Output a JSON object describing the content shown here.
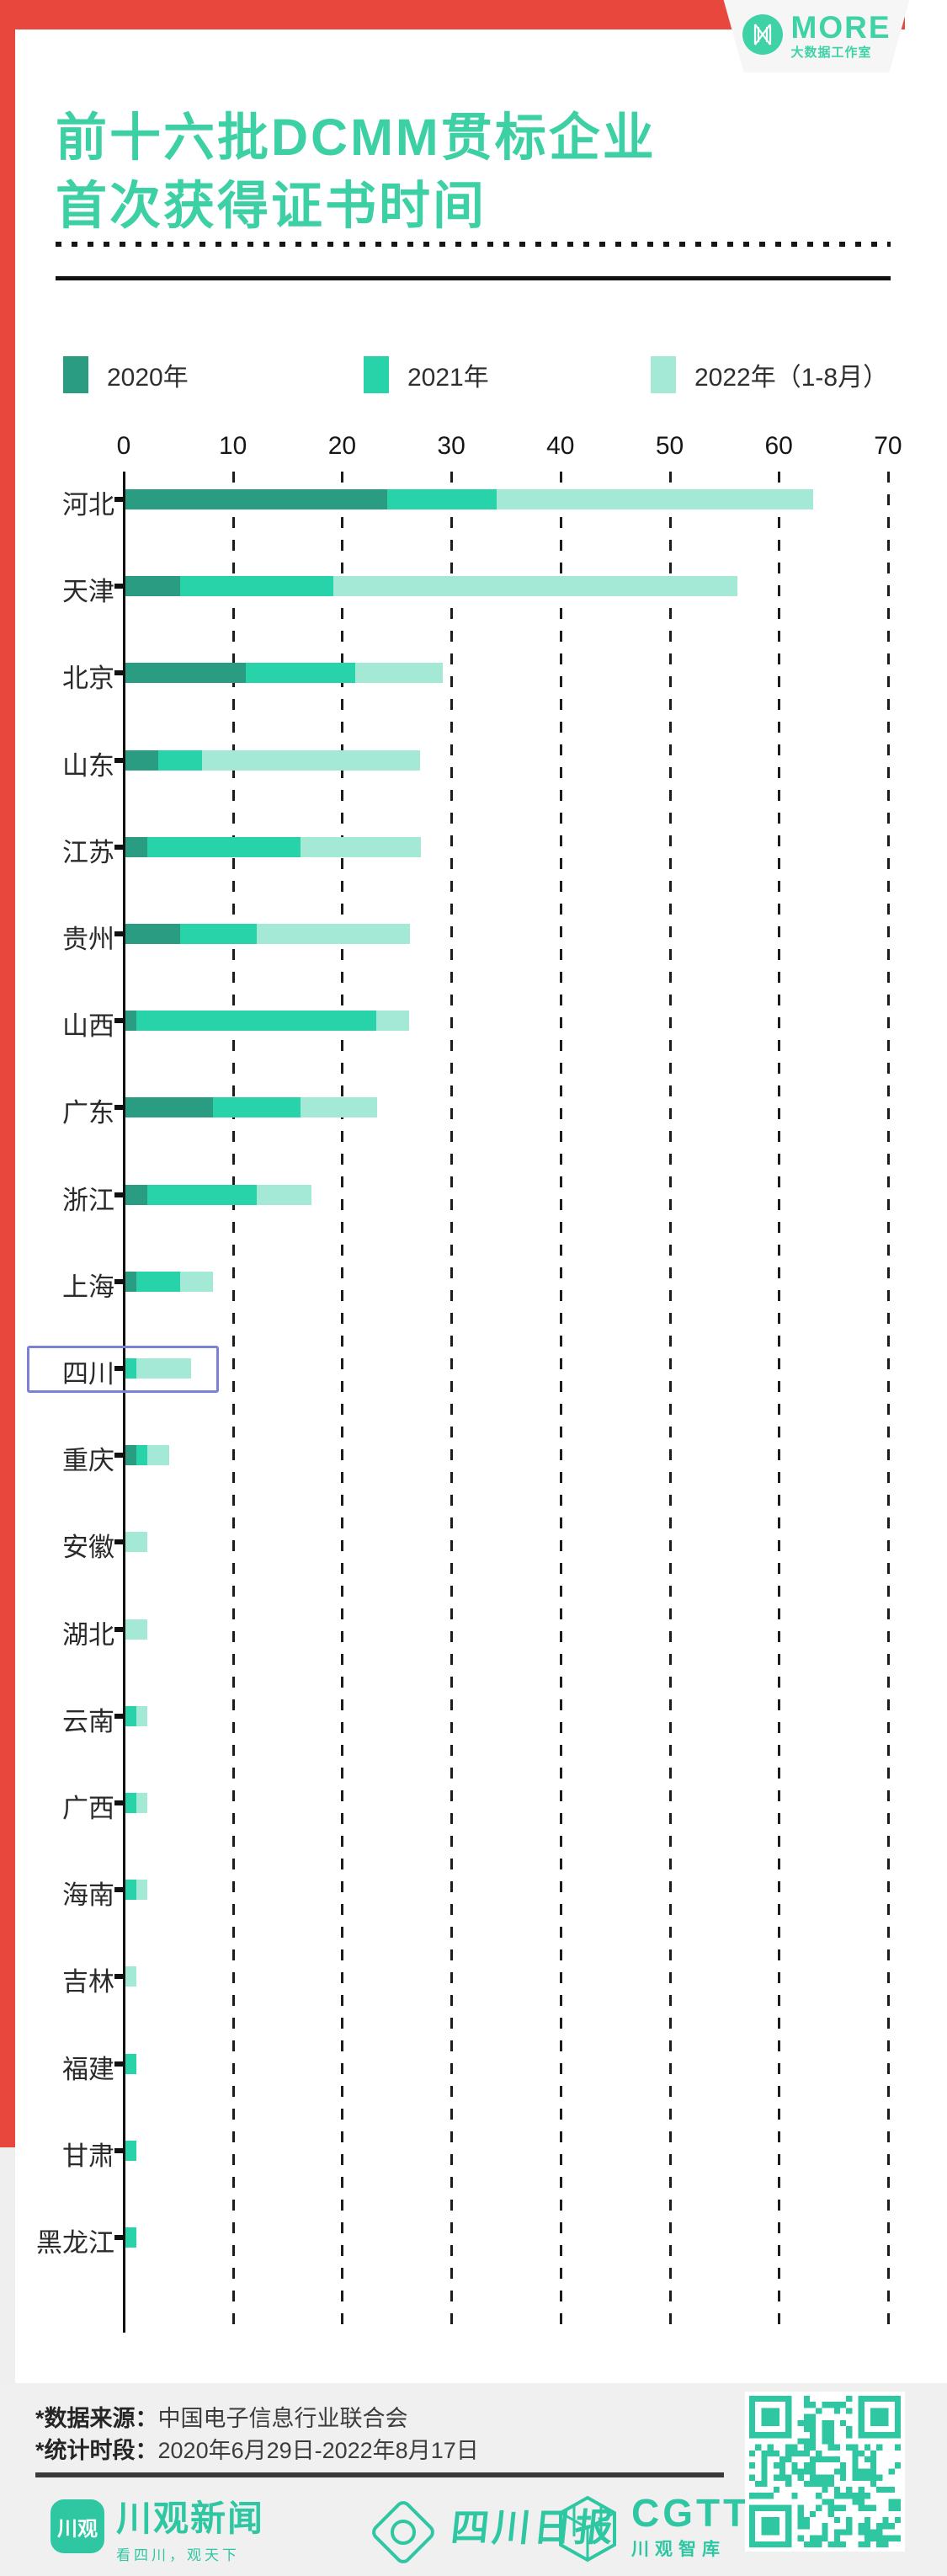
{
  "brand": {
    "name": "MORE",
    "subtitle": "大数据工作室",
    "icon": "more-bowtie-logo",
    "color": "#3fd2a7"
  },
  "header": {
    "title_line1": "前十六批DCMM贯标企业",
    "title_line2": "首次获得证书时间",
    "title_color": "#3ed0a5"
  },
  "chart_data": {
    "type": "bar",
    "orientation": "horizontal",
    "stacked": true,
    "grid": "dashed-vertical",
    "legend_position": "top",
    "x_ticks": [
      0,
      10,
      20,
      30,
      40,
      50,
      60,
      70
    ],
    "xlim": [
      0,
      70
    ],
    "categories": [
      "河北",
      "天津",
      "北京",
      "山东",
      "江苏",
      "贵州",
      "山西",
      "广东",
      "浙江",
      "上海",
      "四川",
      "重庆",
      "安徽",
      "湖北",
      "云南",
      "广西",
      "海南",
      "吉林",
      "福建",
      "甘肃",
      "黑龙江"
    ],
    "series": [
      {
        "name": "2020年",
        "color": "#2a9c82",
        "values": [
          24,
          5,
          11,
          3,
          2,
          5,
          1,
          8,
          2,
          1,
          0,
          1,
          0,
          0,
          0,
          0,
          0,
          0,
          0,
          0,
          0
        ]
      },
      {
        "name": "2021年",
        "color": "#29d3a9",
        "values": [
          10,
          14,
          10,
          4,
          14,
          7,
          22,
          8,
          10,
          4,
          1,
          1,
          0,
          0,
          1,
          1,
          1,
          0,
          1,
          1,
          1
        ]
      },
      {
        "name": "2022年（1-8月）",
        "color": "#a3e9d5",
        "values": [
          29,
          37,
          8,
          20,
          11,
          14,
          3,
          7,
          5,
          3,
          5,
          2,
          2,
          2,
          1,
          1,
          1,
          1,
          0,
          0,
          0
        ]
      }
    ],
    "totals": [
      63,
      56,
      29,
      27,
      27,
      26,
      26,
      23,
      17,
      8,
      6,
      4,
      2,
      2,
      2,
      2,
      2,
      1,
      1,
      1,
      1
    ],
    "highlighted_category": "四川",
    "highlight_color": "#7b82d6"
  },
  "footer": {
    "source_label": "*数据来源：",
    "source_value": "中国电子信息行业联合会",
    "period_label": "*统计时段：",
    "period_value": "2020年6月29日-2022年8月17日",
    "logos": {
      "news_icon_text": "川观",
      "news_name": "川观新闻",
      "news_tagline": "看四川，观天下",
      "daily_name": "四川日报",
      "cgtt_name": "CGTT",
      "cgtt_subtitle": "川观智库"
    },
    "qr_color": "#2fc7a2"
  },
  "frame_color": "#e7473d"
}
